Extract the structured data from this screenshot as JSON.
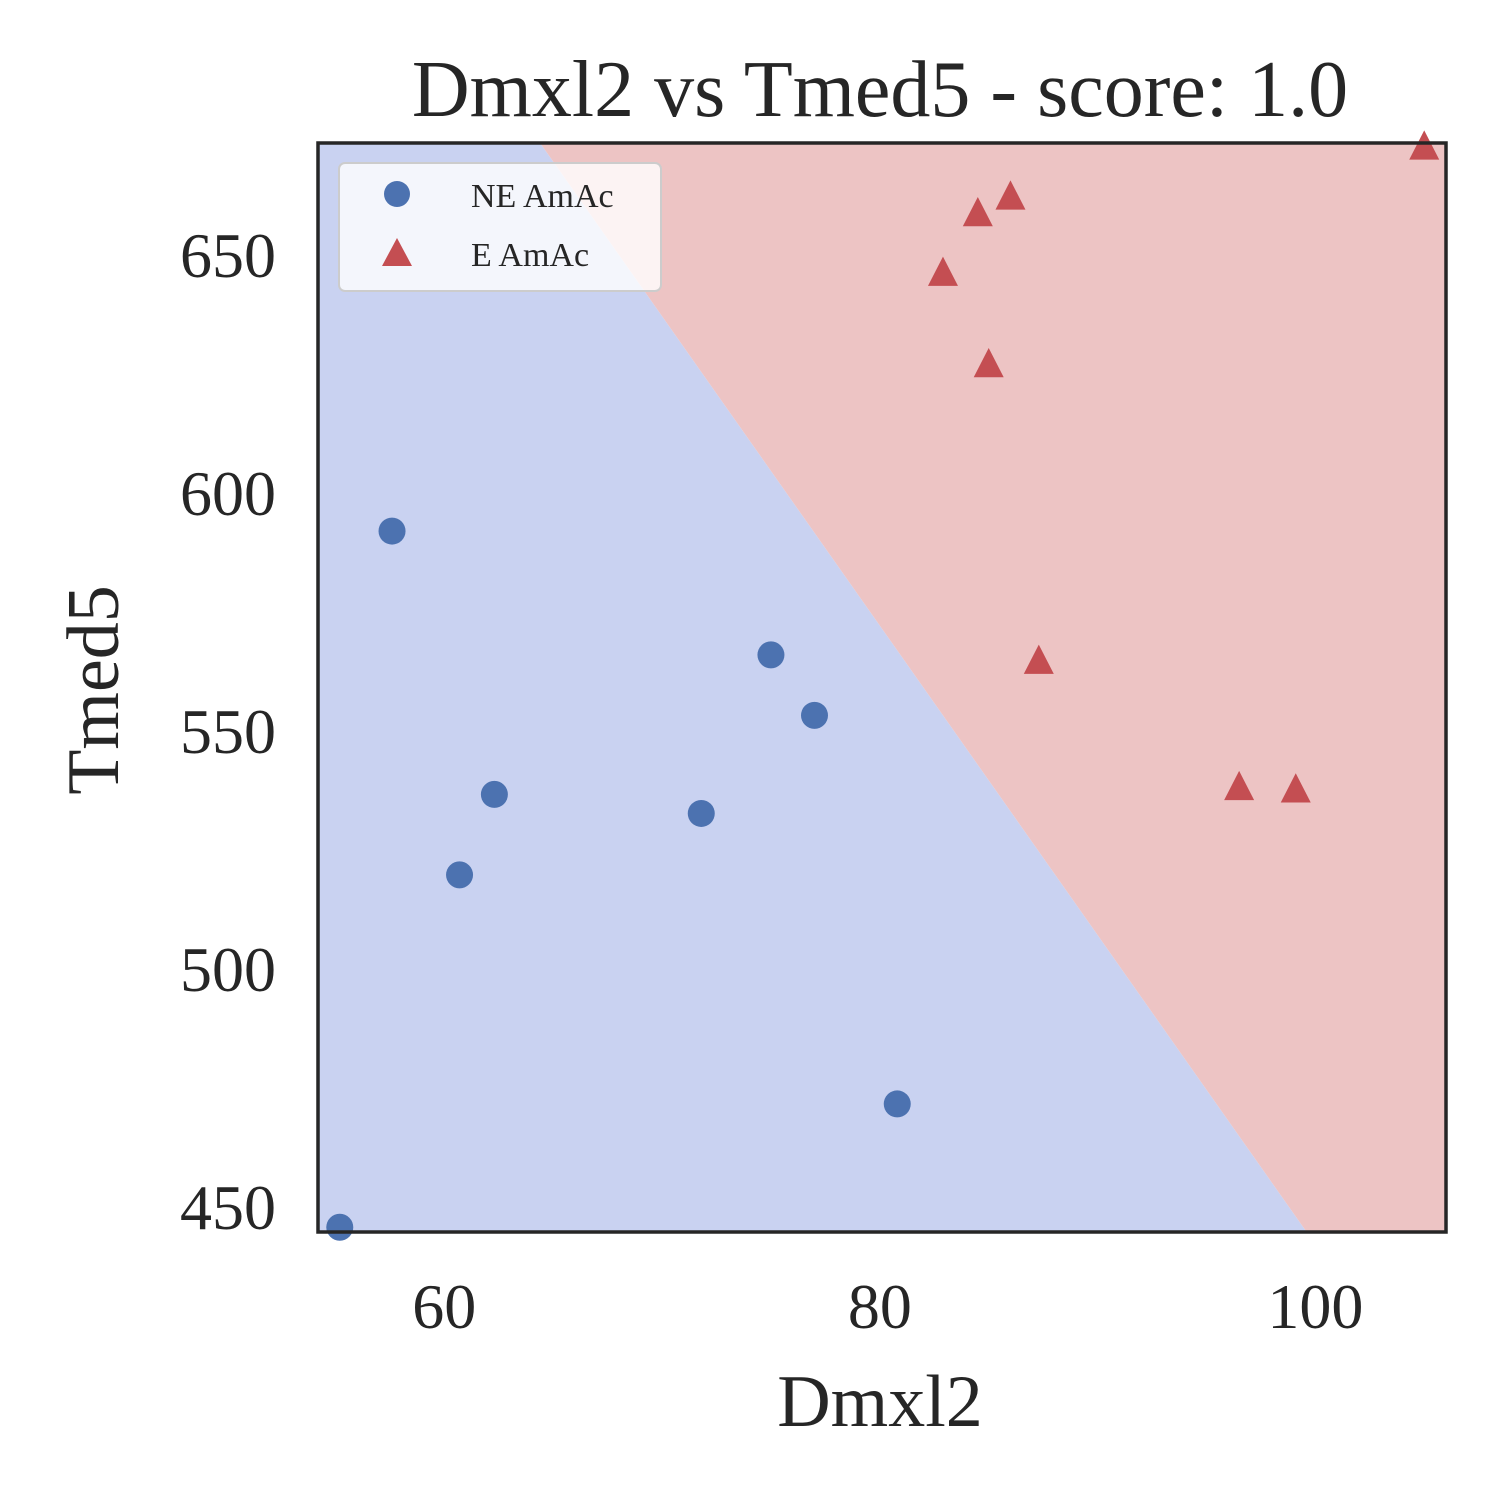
{
  "chart_data": {
    "type": "scatter",
    "title": "Dmxl2 vs Tmed5 - score: 1.0",
    "xlabel": "Dmxl2",
    "ylabel": "Tmed5",
    "xlim": [
      54.2,
      106.0
    ],
    "ylim": [
      444.8,
      673.5
    ],
    "xticks": [
      60,
      80,
      100
    ],
    "yticks": [
      450,
      500,
      550,
      600,
      650
    ],
    "grid": false,
    "legend_position": "top-left",
    "decision_boundary": {
      "comment_free": true,
      "points": [
        [
          64.4,
          673.5
        ],
        [
          99.6,
          444.8
        ]
      ],
      "left_color": "#c9d2f1",
      "right_color": "#edc4c4"
    },
    "series": [
      {
        "name": "NE AmAc",
        "marker": "circle",
        "color": "#4c72b0",
        "points": [
          [
            55.2,
            445.8
          ],
          [
            57.6,
            592.0
          ],
          [
            60.7,
            519.8
          ],
          [
            62.3,
            536.7
          ],
          [
            71.8,
            532.7
          ],
          [
            75.0,
            566.0
          ],
          [
            77.0,
            553.3
          ],
          [
            80.8,
            471.7
          ]
        ]
      },
      {
        "name": "E AmAc",
        "marker": "triangle",
        "color": "#c44e52",
        "points": [
          [
            82.9,
            646.5
          ],
          [
            84.5,
            659.0
          ],
          [
            85.0,
            627.3
          ],
          [
            86.0,
            662.5
          ],
          [
            87.3,
            565.0
          ],
          [
            96.5,
            538.5
          ],
          [
            99.1,
            538.0
          ],
          [
            105.0,
            673.0
          ]
        ]
      }
    ]
  }
}
